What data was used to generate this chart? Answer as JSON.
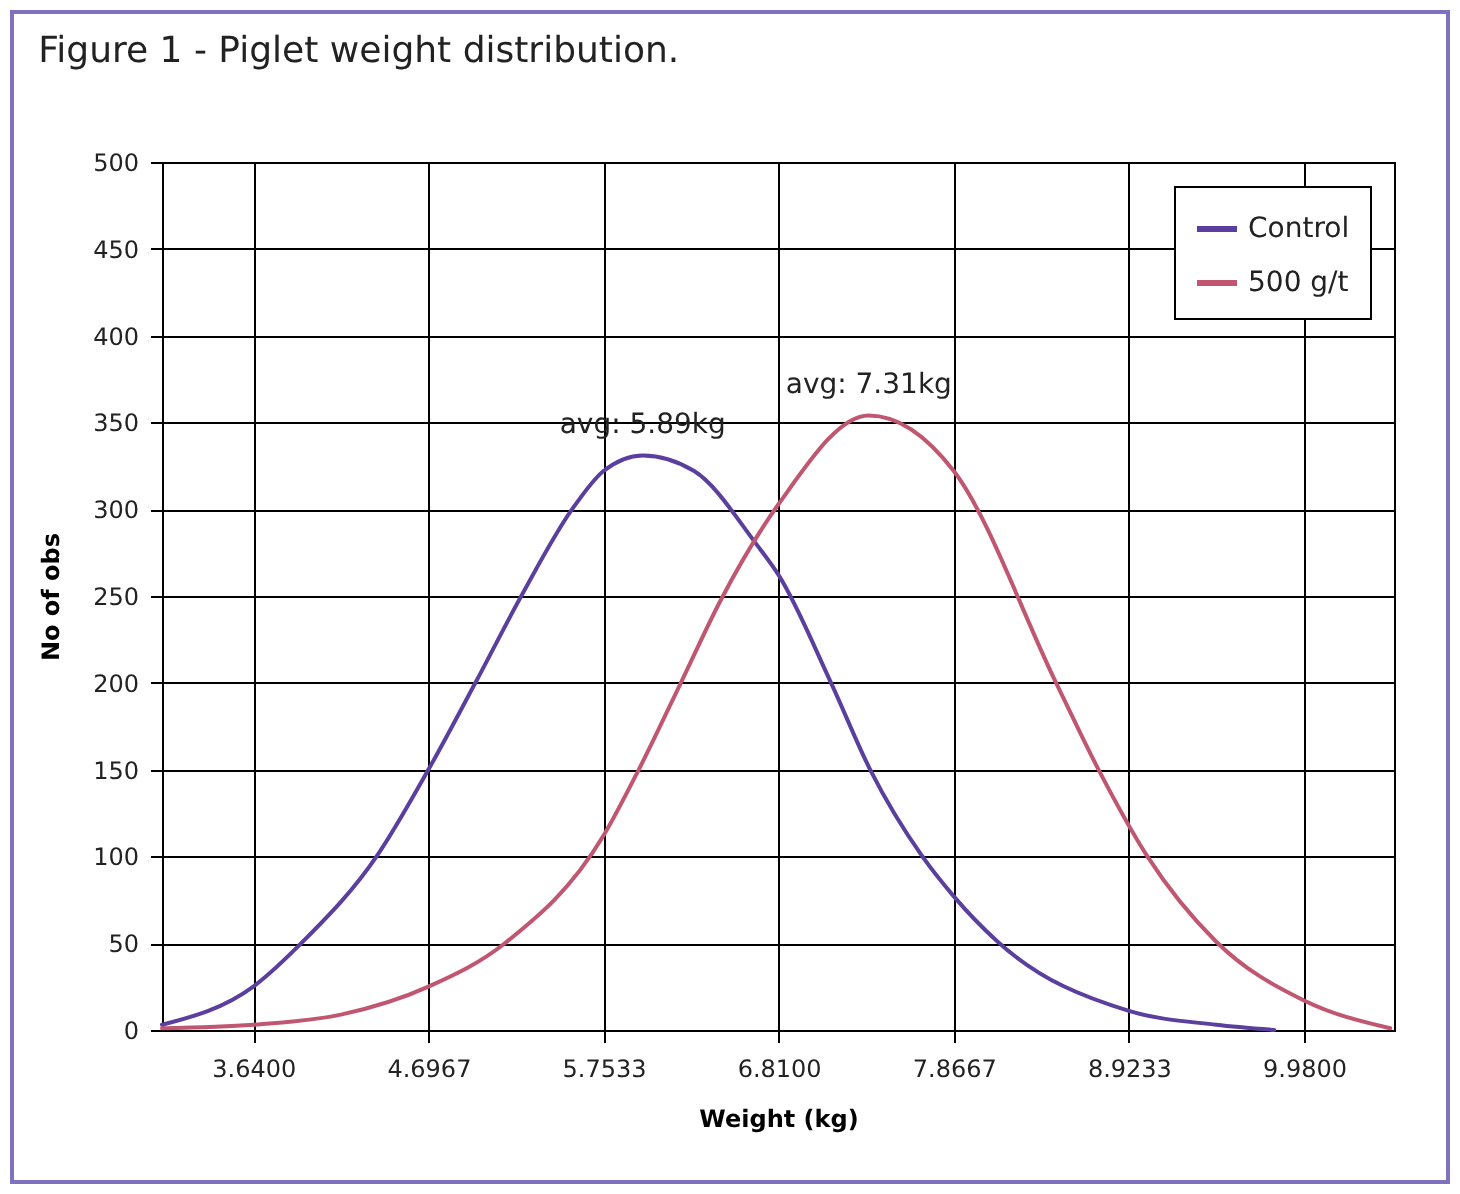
{
  "chart_data": {
    "type": "line",
    "title": "Figure 1 - Piglet weight distribution.",
    "xlabel": "Weight (kg)",
    "ylabel": "No of obs",
    "xlim": [
      3.089,
      10.523
    ],
    "xticks": [
      {
        "value": 3.64,
        "label": "3.6400"
      },
      {
        "value": 4.6967,
        "label": "4.6967"
      },
      {
        "value": 5.7533,
        "label": "5.7533"
      },
      {
        "value": 6.81,
        "label": "6.8100"
      },
      {
        "value": 7.8667,
        "label": "7.8667"
      },
      {
        "value": 8.9233,
        "label": "8.9233"
      },
      {
        "value": 9.98,
        "label": "9.9800"
      }
    ],
    "ylim": [
      0,
      500
    ],
    "yticks": [
      0,
      50,
      100,
      150,
      200,
      250,
      300,
      350,
      400,
      450,
      500
    ],
    "grid": true,
    "legend": "top right",
    "marker": "none",
    "line_style": "solid",
    "annotations": [
      {
        "text": "avg: 5.89kg",
        "x": 5.99,
        "y": 331
      },
      {
        "text": "avg: 7.31kg",
        "x": 7.354,
        "y": 354
      }
    ],
    "series": [
      {
        "name": "Control",
        "color": "#5b3f9e",
        "x": [
          3.089,
          3.64,
          3.94,
          4.384,
          4.6967,
          4.98,
          5.257,
          5.564,
          5.7533,
          5.99,
          6.3,
          6.674,
          6.81,
          7.126,
          7.362,
          7.677,
          7.8667,
          8.13,
          8.9233,
          9.45,
          9.8
        ],
        "values": [
          3,
          25,
          51,
          100,
          150,
          200,
          250,
          300,
          322,
          331,
          322,
          280,
          262,
          200,
          150,
          100,
          77,
          51,
          11,
          3,
          0
        ]
      },
      {
        "name": "500 g/t",
        "color": "#c0566f",
        "x": [
          3.089,
          3.64,
          4.175,
          4.6967,
          5.158,
          5.7533,
          5.966,
          6.22,
          6.457,
          6.81,
          7.354,
          7.8667,
          8.484,
          8.74,
          9.035,
          9.449,
          9.98,
          10.5
        ],
        "values": [
          1,
          3,
          9,
          25,
          50,
          112,
          150,
          200,
          247,
          303,
          354,
          322,
          200,
          150,
          100,
          51,
          17,
          1
        ]
      }
    ]
  }
}
